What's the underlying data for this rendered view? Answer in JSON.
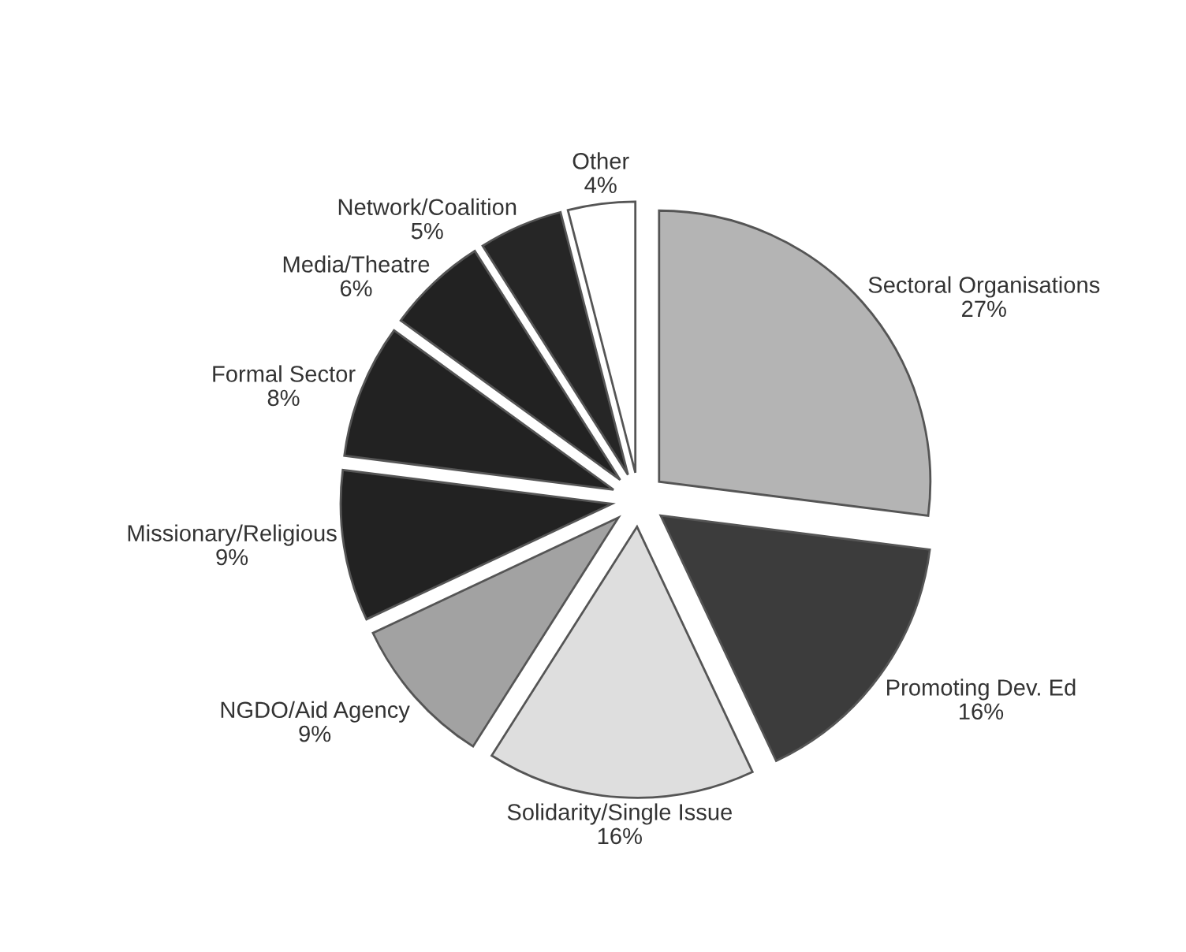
{
  "chart_data": {
    "type": "pie",
    "categories": [
      "Sectoral Organisations",
      "Promoting Dev. Ed",
      "Solidarity/Single Issue",
      "NGDO/Aid Agency",
      "Missionary/Religious",
      "Formal Sector",
      "Media/Theatre",
      "Network/Coalition",
      "Other"
    ],
    "values": [
      27,
      16,
      16,
      9,
      9,
      8,
      6,
      5,
      4
    ],
    "colors": [
      "#b4b4b4",
      "#3c3c3c",
      "#dedede",
      "#a2a2a2",
      "#222222",
      "#222222",
      "#222222",
      "#262626",
      "#ffffff"
    ],
    "value_labels": [
      "27%",
      "16%",
      "16%",
      "9%",
      "9%",
      "8%",
      "6%",
      "5%",
      "4%"
    ]
  }
}
